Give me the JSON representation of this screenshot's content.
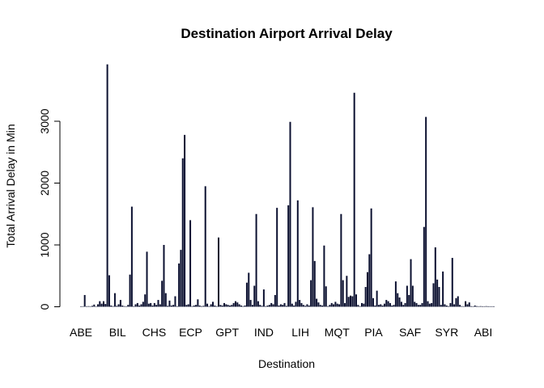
{
  "chart_data": {
    "type": "bar",
    "title": "Destination Airport Arrival Delay",
    "xlabel": "Destination",
    "ylabel": "Total Arrival Delay in Min",
    "ylim": [
      0,
      4000
    ],
    "yticks": [
      0,
      1000,
      2000,
      3000
    ],
    "grid": false,
    "legend": "none",
    "bar_color": "#0b1030",
    "x_tick_labels": [
      "ABE",
      "BIL",
      "CHS",
      "ECP",
      "GPT",
      "IND",
      "LIH",
      "MQT",
      "PIA",
      "SAF",
      "SYR",
      "ABI"
    ],
    "values": [
      0,
      0,
      190,
      0,
      10,
      0,
      15,
      35,
      0,
      40,
      90,
      50,
      90,
      45,
      3920,
      510,
      20,
      10,
      220,
      15,
      40,
      110,
      20,
      10,
      0,
      30,
      520,
      1620,
      10,
      40,
      60,
      20,
      40,
      80,
      200,
      890,
      50,
      60,
      20,
      60,
      30,
      110,
      40,
      420,
      1000,
      220,
      15,
      100,
      20,
      30,
      170,
      10,
      700,
      920,
      2400,
      2780,
      30,
      40,
      1400,
      10,
      20,
      30,
      120,
      20,
      10,
      15,
      1950,
      50,
      10,
      40,
      80,
      20,
      10,
      1120,
      30,
      20,
      60,
      40,
      30,
      20,
      30,
      60,
      90,
      70,
      40,
      20,
      10,
      20,
      390,
      550,
      110,
      30,
      340,
      1500,
      90,
      30,
      15,
      280,
      10,
      20,
      30,
      60,
      40,
      190,
      1600,
      20,
      40,
      30,
      60,
      15,
      1640,
      2990,
      50,
      20,
      80,
      1720,
      110,
      60,
      30,
      15,
      40,
      20,
      430,
      1610,
      740,
      130,
      70,
      30,
      20,
      990,
      330,
      10,
      30,
      60,
      40,
      80,
      50,
      40,
      1500,
      430,
      60,
      500,
      160,
      180,
      170,
      3460,
      200,
      30,
      10,
      60,
      50,
      320,
      560,
      850,
      1590,
      140,
      20,
      260,
      30,
      40,
      20,
      50,
      110,
      90,
      60,
      20,
      30,
      410,
      220,
      150,
      80,
      30,
      60,
      340,
      190,
      770,
      340,
      80,
      60,
      30,
      30,
      60,
      1290,
      3070,
      90,
      50,
      60,
      380,
      960,
      440,
      320,
      30,
      570,
      40,
      20,
      10,
      60,
      790,
      40,
      140,
      170,
      30,
      10,
      0,
      90,
      40,
      70,
      10,
      0,
      20,
      10,
      5,
      10,
      5,
      5,
      10,
      5,
      5,
      3,
      2
    ]
  }
}
